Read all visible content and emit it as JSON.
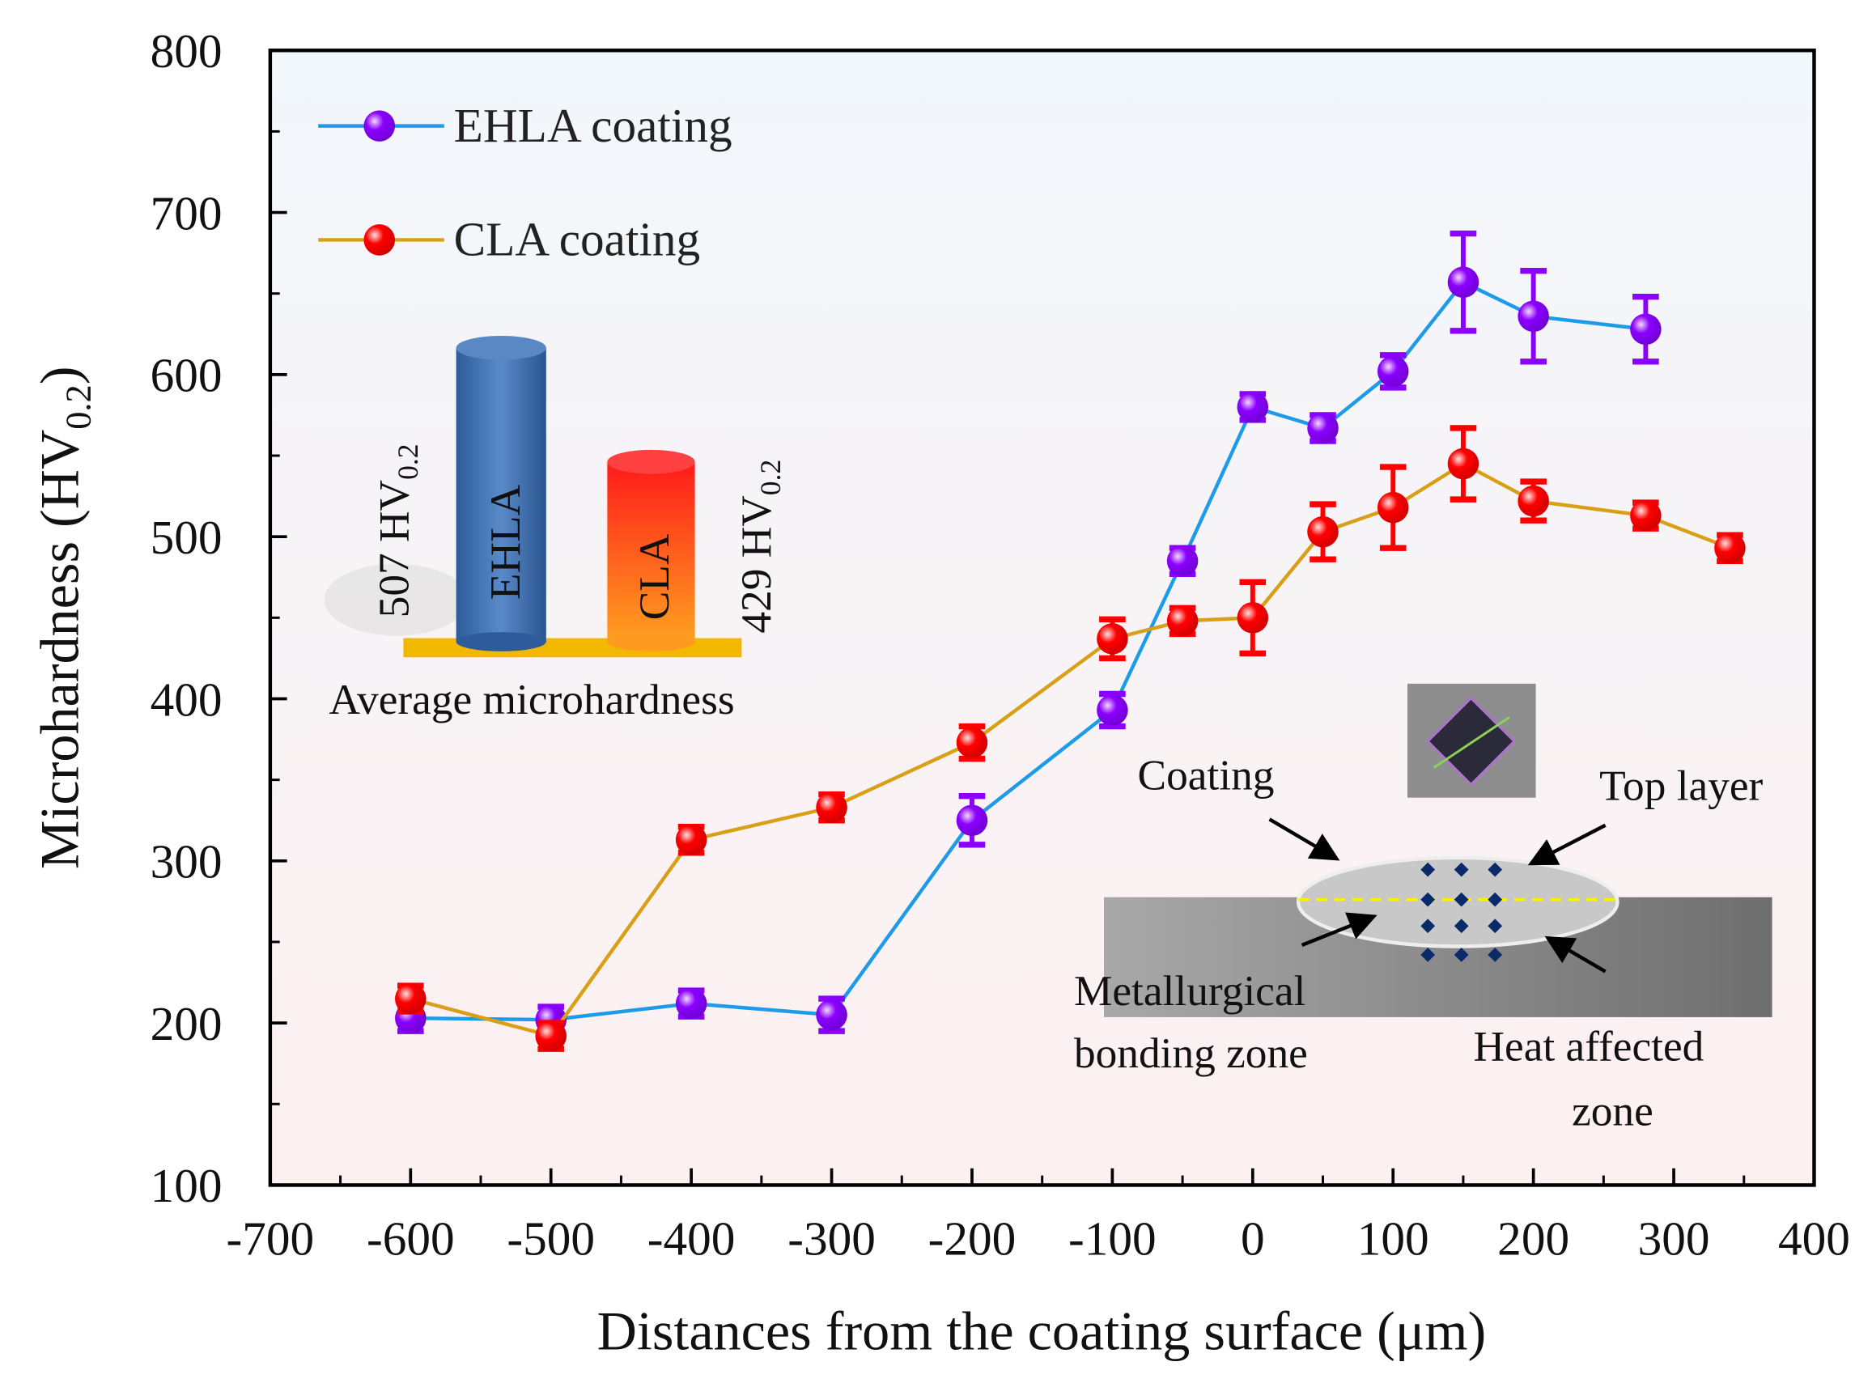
{
  "chart_data": {
    "type": "line",
    "title": "",
    "xlabel": "Distances from the coating surface (μm)",
    "ylabel": "Microhardness (HV",
    "ylabel_sub": "0.2",
    "ylabel_close": ")",
    "xlim": [
      -700,
      400
    ],
    "ylim": [
      100,
      800
    ],
    "xticks": [
      -700,
      -600,
      -500,
      -400,
      -300,
      -200,
      -100,
      0,
      100,
      200,
      300,
      400
    ],
    "yticks": [
      100,
      200,
      300,
      400,
      500,
      600,
      700,
      800
    ],
    "grid": false,
    "legend_position": "top-left",
    "series": [
      {
        "name": "EHLA coating",
        "color": "#8B00FF",
        "line_color": "#1E9BE8",
        "x": [
          -600,
          -500,
          -400,
          -300,
          -200,
          -100,
          -50,
          0,
          50,
          100,
          150,
          200,
          280
        ],
        "y": [
          203,
          202,
          212,
          205,
          325,
          393,
          485,
          580,
          567,
          602,
          657,
          636,
          628
        ],
        "err": [
          8,
          8,
          8,
          10,
          15,
          10,
          8,
          8,
          8,
          10,
          30,
          28,
          20
        ]
      },
      {
        "name": "CLA coating",
        "color": "#FF0000",
        "line_color": "#D9A017",
        "x": [
          -600,
          -500,
          -400,
          -300,
          -200,
          -100,
          -50,
          0,
          50,
          100,
          150,
          200,
          280,
          340
        ],
        "y": [
          215,
          192,
          313,
          333,
          373,
          437,
          448,
          450,
          503,
          518,
          545,
          522,
          513,
          493
        ],
        "err": [
          8,
          8,
          8,
          8,
          10,
          12,
          8,
          22,
          17,
          25,
          22,
          12,
          8,
          8
        ]
      }
    ]
  },
  "inset_bars": {
    "title": "Average microhardness",
    "bars": [
      {
        "label": "EHLA",
        "value_text": "507 HV",
        "sub": "0.2",
        "value": 507
      },
      {
        "label": "CLA",
        "value_text": "429 HV",
        "sub": "0.2",
        "value": 429
      }
    ]
  },
  "inset_diagram": {
    "coating": "Coating",
    "top_layer": "Top layer",
    "bonding_1": "Metallurgical",
    "bonding_2": "bonding zone",
    "haz_1": "Heat affected",
    "haz_2": "zone"
  }
}
